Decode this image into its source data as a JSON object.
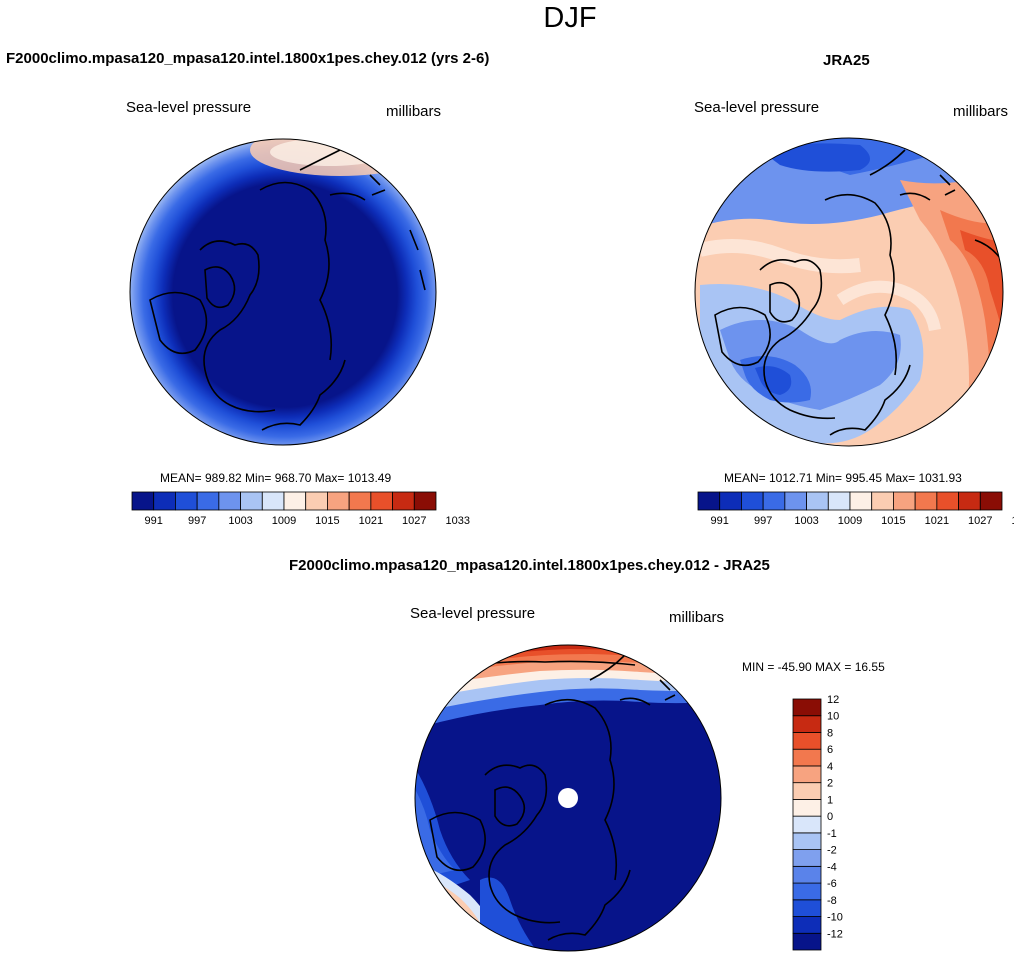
{
  "title": "DJF",
  "panels": {
    "model": {
      "title": "F2000climo.mpasa120_mpasa120.intel.1800x1pes.chey.012 (yrs 2-6)",
      "left_label": "Sea-level pressure",
      "right_label": "millibars",
      "stats": "MEAN= 989.82  Min= 968.70  Max= 1013.49",
      "mean": 989.82,
      "min": 968.7,
      "max": 1013.49
    },
    "obs": {
      "title": "JRA25",
      "left_label": "Sea-level pressure",
      "right_label": "millibars",
      "stats": "MEAN= 1012.71  Min= 995.45  Max= 1031.93",
      "mean": 1012.71,
      "min": 995.45,
      "max": 1031.93
    },
    "diff": {
      "title": "F2000climo.mpasa120_mpasa120.intel.1800x1pes.chey.012 - JRA25",
      "left_label": "Sea-level pressure",
      "right_label": "millibars",
      "stats": "MIN = -45.90 MAX =  16.55",
      "min": -45.9,
      "max": 16.55
    }
  },
  "colorbars": {
    "abs": {
      "colors": [
        "#07148a",
        "#0d2db8",
        "#1f4fd8",
        "#3a6be6",
        "#6d93ee",
        "#a9c4f4",
        "#d9e6fa",
        "#fdf0e6",
        "#fbcdb2",
        "#f7a380",
        "#f2784e",
        "#e8502a",
        "#c72a12",
        "#8a0d05"
      ],
      "tick_labels": [
        "991",
        "997",
        "1003",
        "1009",
        "1015",
        "1021",
        "1027",
        "1033"
      ]
    },
    "diff": {
      "colors": [
        "#07148a",
        "#0d2db8",
        "#1f4fd8",
        "#3a6be6",
        "#5a83ea",
        "#7fa0ee",
        "#a9c4f4",
        "#d9e6fa",
        "#fdf0e6",
        "#fbcdb2",
        "#f7a380",
        "#f2784e",
        "#e8502a",
        "#c72a12",
        "#8a0d05"
      ],
      "tick_labels": [
        "-12",
        "-10",
        "-8",
        "-6",
        "-4",
        "-2",
        "-1",
        "0",
        "1",
        "2",
        "4",
        "6",
        "8",
        "10",
        "12"
      ]
    }
  },
  "chart_data": [
    {
      "type": "heatmap",
      "title": "F2000climo.mpasa120_mpasa120.intel.1800x1pes.chey.012 (yrs 2-6)",
      "variable": "Sea-level pressure",
      "units": "millibars",
      "projection": "north polar stereographic",
      "mean": 989.82,
      "min": 968.7,
      "max": 1013.49,
      "levels": [
        991,
        994,
        997,
        1000,
        1003,
        1006,
        1009,
        1012,
        1015,
        1018,
        1021,
        1024,
        1027,
        1030,
        1033
      ]
    },
    {
      "type": "heatmap",
      "title": "JRA25",
      "variable": "Sea-level pressure",
      "units": "millibars",
      "projection": "north polar stereographic",
      "mean": 1012.71,
      "min": 995.45,
      "max": 1031.93,
      "levels": [
        991,
        994,
        997,
        1000,
        1003,
        1006,
        1009,
        1012,
        1015,
        1018,
        1021,
        1024,
        1027,
        1030,
        1033
      ]
    },
    {
      "type": "heatmap",
      "title": "F2000climo.mpasa120_mpasa120.intel.1800x1pes.chey.012 - JRA25",
      "variable": "Sea-level pressure",
      "units": "millibars",
      "projection": "north polar stereographic",
      "min": -45.9,
      "max": 16.55,
      "levels": [
        -12,
        -10,
        -8,
        -6,
        -4,
        -2,
        -1,
        0,
        1,
        2,
        4,
        6,
        8,
        10,
        12
      ]
    }
  ]
}
